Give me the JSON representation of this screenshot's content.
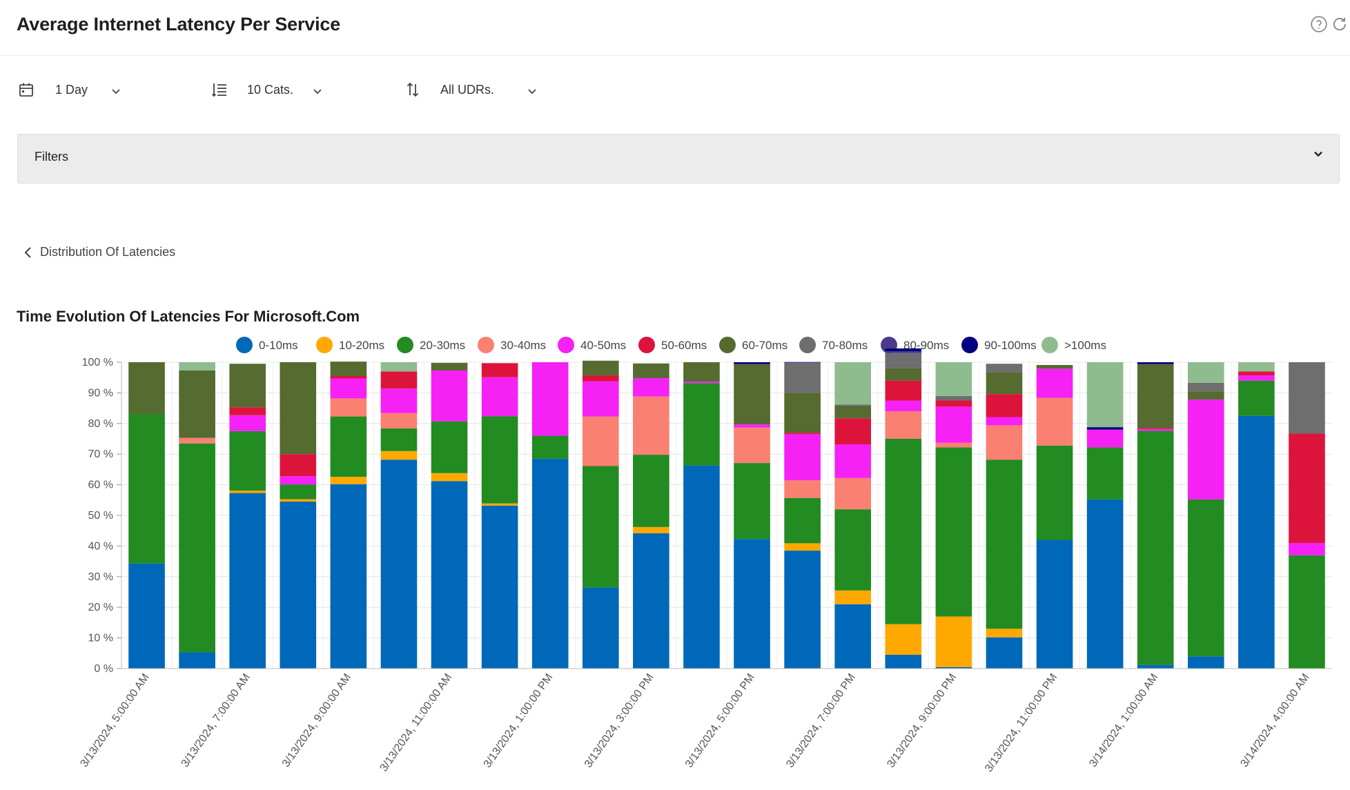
{
  "header": {
    "title": "Average Internet Latency Per Service"
  },
  "controls": {
    "period": {
      "label": "1 Day",
      "icon": "calendar-icon"
    },
    "categories": {
      "label": "10 Cats.",
      "icon": "sort-lines-icon"
    },
    "udrs": {
      "label": "All UDRs.",
      "icon": "sort-arrows-icon"
    }
  },
  "filters": {
    "label": "Filters"
  },
  "breadcrumb": {
    "label": "Distribution Of Latencies"
  },
  "chart_data": {
    "type": "bar",
    "stacked": true,
    "title": "Time Evolution Of Latencies For Microsoft.Com",
    "ylim": [
      0,
      100
    ],
    "yticks": [
      "0 %",
      "10 %",
      "20 %",
      "30 %",
      "40 %",
      "50 %",
      "60 %",
      "70 %",
      "80 %",
      "90 %",
      "100 %"
    ],
    "legend_position": "top",
    "grid": true,
    "xtick_labels": [
      "3/13/2024, 5:00:00 AM",
      "3/13/2024, 7:00:00 AM",
      "3/13/2024, 9:00:00 AM",
      "3/13/2024, 11:00:00 AM",
      "3/13/2024, 1:00:00 PM",
      "3/13/2024, 3:00:00 PM",
      "3/13/2024, 5:00:00 PM",
      "3/13/2024, 7:00:00 PM",
      "3/13/2024, 9:00:00 PM",
      "3/13/2024, 11:00:00 PM",
      "3/14/2024, 1:00:00 AM",
      "3/14/2024, 4:00:00 AM"
    ],
    "series": [
      {
        "name": "0-10ms",
        "color": "#0068b8",
        "values": [
          34.3,
          5.3,
          57.3,
          54.5,
          60.2,
          68.2,
          61.2,
          53.2,
          68.5,
          26.5,
          44.2,
          66.3,
          42.3,
          38.5,
          21.0,
          4.5,
          0.5,
          10.2,
          42.0,
          55.2,
          1.2,
          4.0,
          82.5,
          0
        ]
      },
      {
        "name": "10-20ms",
        "color": "#ffa800",
        "values": [
          0,
          0,
          0.8,
          0.8,
          2.4,
          2.8,
          2.6,
          0.7,
          0,
          0,
          2.0,
          0,
          0,
          2.4,
          4.5,
          10.0,
          16.5,
          2.8,
          0,
          0,
          0,
          0,
          0,
          0
        ]
      },
      {
        "name": "20-30ms",
        "color": "#228b22",
        "values": [
          48.8,
          68.2,
          19.4,
          4.8,
          19.7,
          7.4,
          16.9,
          28.5,
          7.5,
          39.6,
          23.6,
          26.9,
          24.8,
          14.8,
          26.5,
          60.5,
          55.2,
          55.2,
          30.8,
          17.0,
          76.4,
          51.2,
          11.5,
          37.0
        ]
      },
      {
        "name": "30-40ms",
        "color": "#fa8072",
        "values": [
          0,
          1.8,
          0,
          0,
          5.9,
          5.0,
          0,
          0,
          0,
          16.2,
          19.0,
          0,
          11.6,
          5.8,
          10.2,
          9.0,
          1.5,
          11.2,
          15.6,
          0,
          0,
          0,
          0,
          0
        ]
      },
      {
        "name": "40-50ms",
        "color": "#f521f5",
        "values": [
          0,
          0,
          5.2,
          2.7,
          6.5,
          8.0,
          16.6,
          12.7,
          24.0,
          11.5,
          6.0,
          0.5,
          1.0,
          15.0,
          11.0,
          3.5,
          11.8,
          2.7,
          9.5,
          5.8,
          0.6,
          32.6,
          1.7,
          4.0
        ]
      },
      {
        "name": "50-60ms",
        "color": "#dc143c",
        "values": [
          0,
          0,
          2.6,
          7.2,
          0.8,
          5.6,
          0,
          4.6,
          0,
          1.9,
          0,
          0,
          0,
          0.5,
          8.5,
          6.5,
          2.0,
          7.5,
          0,
          0,
          0.3,
          0,
          1.3,
          35.7
        ]
      },
      {
        "name": "60-70ms",
        "color": "#556b2f",
        "values": [
          16.9,
          22.0,
          14.2,
          30.0,
          4.7,
          0,
          2.5,
          0,
          0,
          4.8,
          4.8,
          6.3,
          19.7,
          13.0,
          4.0,
          4.0,
          0,
          7.2,
          1.2,
          0,
          20.9,
          2.7,
          0,
          0
        ]
      },
      {
        "name": "70-80ms",
        "color": "#6e6e6e",
        "values": [
          0,
          0,
          0,
          0,
          0,
          0,
          0,
          0,
          0,
          0,
          0,
          0,
          0,
          9.8,
          0.5,
          5.0,
          1.5,
          2.7,
          0,
          0,
          0,
          2.8,
          0,
          23.3
        ]
      },
      {
        "name": "80-90ms",
        "color": "#4b3a8c",
        "values": [
          0,
          0,
          0,
          0,
          0,
          0,
          0,
          0,
          0,
          0,
          0,
          0,
          0,
          0.3,
          0,
          0.6,
          0,
          0,
          0,
          0,
          0,
          0,
          0,
          0
        ]
      },
      {
        "name": "90-100ms",
        "color": "#000080",
        "values": [
          0,
          0,
          0,
          0,
          0,
          0,
          0,
          0,
          0,
          0,
          0,
          0,
          0.6,
          0,
          0,
          0.9,
          0,
          0,
          0,
          0.8,
          0.6,
          0,
          0,
          0
        ]
      },
      {
        "name": ">100ms",
        "color": "#8fbc8f",
        "values": [
          0,
          2.7,
          0,
          0,
          0,
          3.0,
          0,
          0,
          0,
          0,
          0,
          0,
          0,
          0,
          13.8,
          0,
          11.0,
          0,
          0,
          21.2,
          0,
          6.7,
          3.0,
          0
        ]
      }
    ]
  }
}
